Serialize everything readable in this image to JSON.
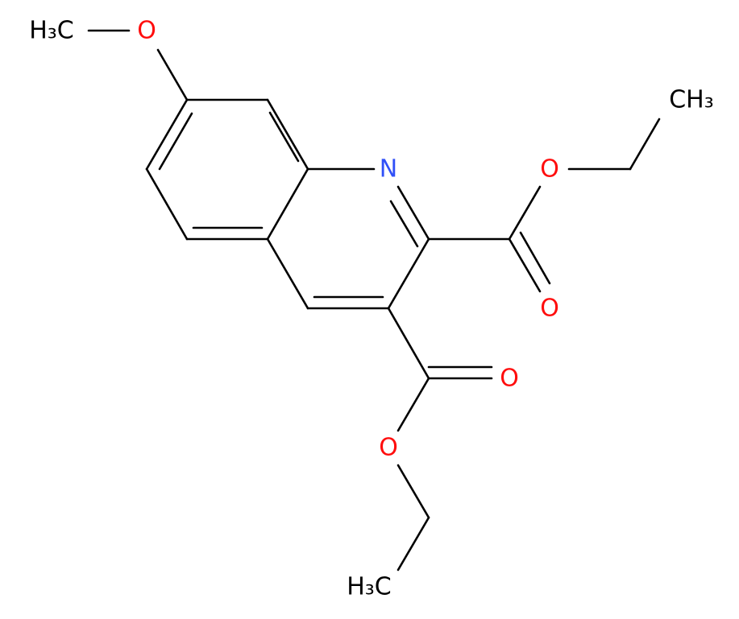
{
  "atoms": [
    {
      "label": "H₃C",
      "element": "C"
    },
    {
      "label": "O",
      "element": "O"
    },
    {
      "label": "N",
      "element": "N"
    },
    {
      "label": "CH₃",
      "element": "C"
    },
    {
      "label": "O",
      "element": "O"
    },
    {
      "label": "O",
      "element": "O"
    },
    {
      "label": "O",
      "element": "O"
    },
    {
      "label": "O",
      "element": "O"
    },
    {
      "label": "H₃C",
      "element": "C"
    }
  ]
}
